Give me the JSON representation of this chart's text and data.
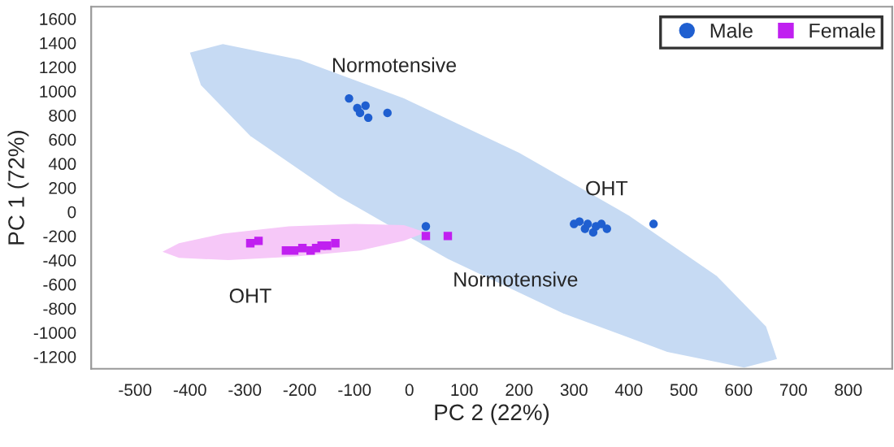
{
  "chart_data": {
    "type": "scatter",
    "xlabel": "PC 2 (22%)",
    "ylabel": "PC 1 (72%)",
    "xlim": [
      -580,
      880
    ],
    "ylim": [
      -1300,
      1700
    ],
    "xticks": [
      -500,
      -400,
      -300,
      -200,
      -100,
      0,
      100,
      200,
      300,
      400,
      500,
      600,
      700,
      800
    ],
    "yticks": [
      -1200,
      -1000,
      -800,
      -600,
      -400,
      -200,
      0,
      200,
      400,
      600,
      800,
      1000,
      1200,
      1400,
      1600
    ],
    "grid": false,
    "legend": "top right",
    "series": [
      {
        "type": "area",
        "color": "#c6daf3",
        "x": [
          670,
          650,
          560,
          400,
          200,
          -10,
          -200,
          -340,
          -400,
          -380,
          -290,
          -130,
          70,
          280,
          470,
          610,
          670
        ],
        "values": [
          -1220,
          -950,
          -530,
          -30,
          490,
          940,
          1260,
          1390,
          1320,
          1050,
          630,
          130,
          -390,
          -840,
          -1160,
          -1290,
          -1220
        ]
      },
      {
        "type": "area",
        "color": "#f6c8f8",
        "x": [
          30,
          -10,
          -100,
          -220,
          -340,
          -420,
          -450,
          -420,
          -330,
          -210,
          -90,
          -10,
          30
        ],
        "values": [
          -170,
          -110,
          -100,
          -120,
          -180,
          -260,
          -330,
          -380,
          -400,
          -370,
          -320,
          -240,
          -170
        ]
      },
      {
        "name": "Male",
        "color": "#1f5fd0",
        "marker": "circle",
        "x": [
          -110,
          -95,
          -80,
          -90,
          -75,
          -40,
          30,
          300,
          310,
          320,
          325,
          335,
          340,
          350,
          360,
          445
        ],
        "values": [
          940,
          860,
          880,
          820,
          780,
          820,
          -120,
          -100,
          -80,
          -140,
          -100,
          -170,
          -120,
          -100,
          -140,
          -100
        ]
      },
      {
        "name": "Female",
        "color": "#c020f0",
        "marker": "square",
        "x": [
          -290,
          -275,
          -225,
          -210,
          -195,
          -180,
          -170,
          -160,
          -150,
          -135,
          30,
          70
        ],
        "values": [
          -260,
          -240,
          -320,
          -320,
          -300,
          -320,
          -300,
          -280,
          -280,
          -260,
          -200,
          -200
        ]
      }
    ],
    "annotations": [
      {
        "text": "Normotensive",
        "x": -110,
        "y": 940
      },
      {
        "text": "OHT",
        "x": 310,
        "y": -80
      },
      {
        "text": "OHT",
        "x": -290,
        "y": -260
      },
      {
        "text": "Normotensive",
        "x": 70,
        "y": -200
      }
    ]
  }
}
